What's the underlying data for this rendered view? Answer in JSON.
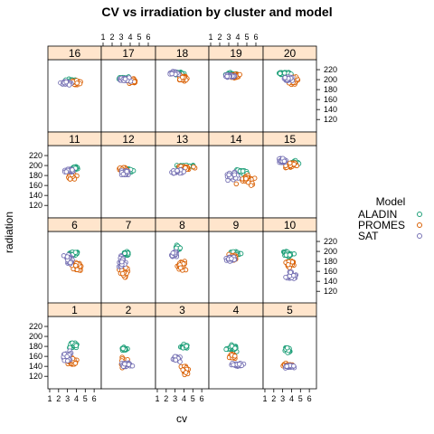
{
  "chart_data": {
    "type": "scatter",
    "title": "CV vs irradiation by cluster and model",
    "xlabel": "cv",
    "ylabel": "radiation",
    "xlim": [
      0.8,
      6.8
    ],
    "ylim": [
      95,
      240
    ],
    "x_ticks": [
      "1",
      "2",
      "3",
      "4",
      "5",
      "6"
    ],
    "y_ticks": [
      "120",
      "140",
      "160",
      "180",
      "200",
      "220"
    ],
    "panel_order_top_to_bottom": [
      [
        "16",
        "17",
        "18",
        "19",
        "20"
      ],
      [
        "11",
        "12",
        "13",
        "14",
        "15"
      ],
      [
        "6",
        "7",
        "8",
        "9",
        "10"
      ],
      [
        "1",
        "2",
        "3",
        "4",
        "5"
      ]
    ],
    "legend": {
      "title": "Model",
      "position": "right",
      "entries": [
        "ALADIN",
        "PROMES",
        "SAT"
      ]
    },
    "colors": {
      "ALADIN": "#1b9e77",
      "PROMES": "#d95f02",
      "SAT": "#7570b3",
      "strip_fill": "#ffe5cc",
      "point_fill": "#ffffff"
    },
    "clusters": {
      "1": {
        "ALADIN": [
          3.6,
          183,
          0.45,
          6
        ],
        "PROMES": [
          3.5,
          150,
          0.5,
          8
        ],
        "SAT": [
          3.0,
          160,
          0.5,
          10
        ]
      },
      "2": {
        "ALADIN": [
          3.3,
          175,
          0.3,
          3
        ],
        "PROMES": [
          3.3,
          148,
          0.4,
          10
        ],
        "SAT": [
          3.7,
          143,
          0.6,
          4
        ]
      },
      "3": {
        "ALADIN": [
          4.0,
          180,
          0.4,
          4
        ],
        "PROMES": [
          4.1,
          133,
          0.4,
          10
        ],
        "SAT": [
          3.2,
          155,
          0.5,
          6
        ]
      },
      "4": {
        "ALADIN": [
          3.3,
          177,
          0.5,
          5
        ],
        "PROMES": [
          3.4,
          160,
          0.4,
          4
        ],
        "SAT": [
          3.9,
          143,
          0.6,
          3
        ]
      },
      "5": {
        "ALADIN": [
          3.6,
          173,
          0.3,
          5
        ],
        "PROMES": [
          3.5,
          142,
          0.4,
          4
        ],
        "SAT": [
          3.8,
          140,
          0.5,
          3
        ]
      },
      "6": {
        "ALADIN": [
          3.7,
          196,
          0.5,
          4
        ],
        "PROMES": [
          4.1,
          170,
          0.5,
          8
        ],
        "SAT": [
          3.2,
          183,
          0.5,
          10
        ]
      },
      "7": {
        "ALADIN": [
          3.5,
          195,
          0.3,
          4
        ],
        "PROMES": [
          3.3,
          160,
          0.4,
          14
        ],
        "SAT": [
          3.0,
          180,
          0.35,
          12
        ]
      },
      "8": {
        "ALADIN": [
          3.3,
          207,
          0.3,
          4
        ],
        "PROMES": [
          3.8,
          172,
          0.4,
          10
        ],
        "SAT": [
          2.9,
          195,
          0.35,
          5
        ]
      },
      "9": {
        "ALADIN": [
          3.7,
          196,
          0.6,
          5
        ],
        "PROMES": [
          3.5,
          188,
          0.5,
          6
        ],
        "SAT": [
          3.2,
          185,
          0.5,
          6
        ]
      },
      "10": {
        "ALADIN": [
          3.6,
          195,
          0.5,
          5
        ],
        "PROMES": [
          3.8,
          175,
          0.6,
          7
        ],
        "SAT": [
          4.0,
          152,
          0.6,
          8
        ]
      },
      "11": {
        "ALADIN": [
          3.8,
          195,
          0.3,
          3
        ],
        "PROMES": [
          3.5,
          178,
          0.5,
          6
        ],
        "SAT": [
          3.2,
          190,
          0.4,
          4
        ]
      },
      "12": {
        "ALADIN": [
          3.8,
          190,
          0.5,
          5
        ],
        "PROMES": [
          3.3,
          193,
          0.5,
          5
        ],
        "SAT": [
          3.4,
          185,
          0.5,
          6
        ]
      },
      "13": {
        "ALADIN": [
          4.2,
          198,
          1.0,
          3
        ],
        "PROMES": [
          4.2,
          195,
          1.1,
          4
        ],
        "SAT": [
          3.2,
          188,
          0.6,
          4
        ]
      },
      "14": {
        "ALADIN": [
          4.5,
          188,
          1.1,
          5
        ],
        "PROMES": [
          4.8,
          172,
          1.1,
          9
        ],
        "SAT": [
          3.6,
          178,
          0.8,
          6
        ]
      },
      "15": {
        "ALADIN": [
          4.3,
          205,
          0.5,
          6
        ],
        "PROMES": [
          4.0,
          200,
          0.6,
          6
        ],
        "SAT": [
          3.0,
          210,
          0.35,
          4
        ]
      },
      "16": {
        "ALADIN": [
          3.6,
          198,
          0.6,
          3
        ],
        "PROMES": [
          3.9,
          194,
          0.5,
          4
        ],
        "SAT": [
          2.8,
          193,
          0.6,
          3
        ]
      },
      "17": {
        "ALADIN": [
          3.4,
          203,
          0.5,
          3
        ],
        "PROMES": [
          4.2,
          197,
          0.5,
          4
        ],
        "SAT": [
          3.5,
          200,
          0.7,
          3
        ]
      },
      "18": {
        "ALADIN": [
          3.5,
          212,
          0.5,
          3
        ],
        "PROMES": [
          3.9,
          203,
          0.5,
          5
        ],
        "SAT": [
          2.9,
          213,
          0.6,
          3
        ]
      },
      "19": {
        "ALADIN": [
          3.2,
          210,
          0.6,
          4
        ],
        "PROMES": [
          3.6,
          207,
          0.5,
          4
        ],
        "SAT": [
          3.1,
          207,
          0.6,
          3
        ]
      },
      "20": {
        "ALADIN": [
          3.2,
          212,
          0.6,
          3
        ],
        "PROMES": [
          4.3,
          198,
          0.5,
          8
        ],
        "SAT": [
          3.6,
          202,
          0.6,
          5
        ]
      }
    }
  }
}
